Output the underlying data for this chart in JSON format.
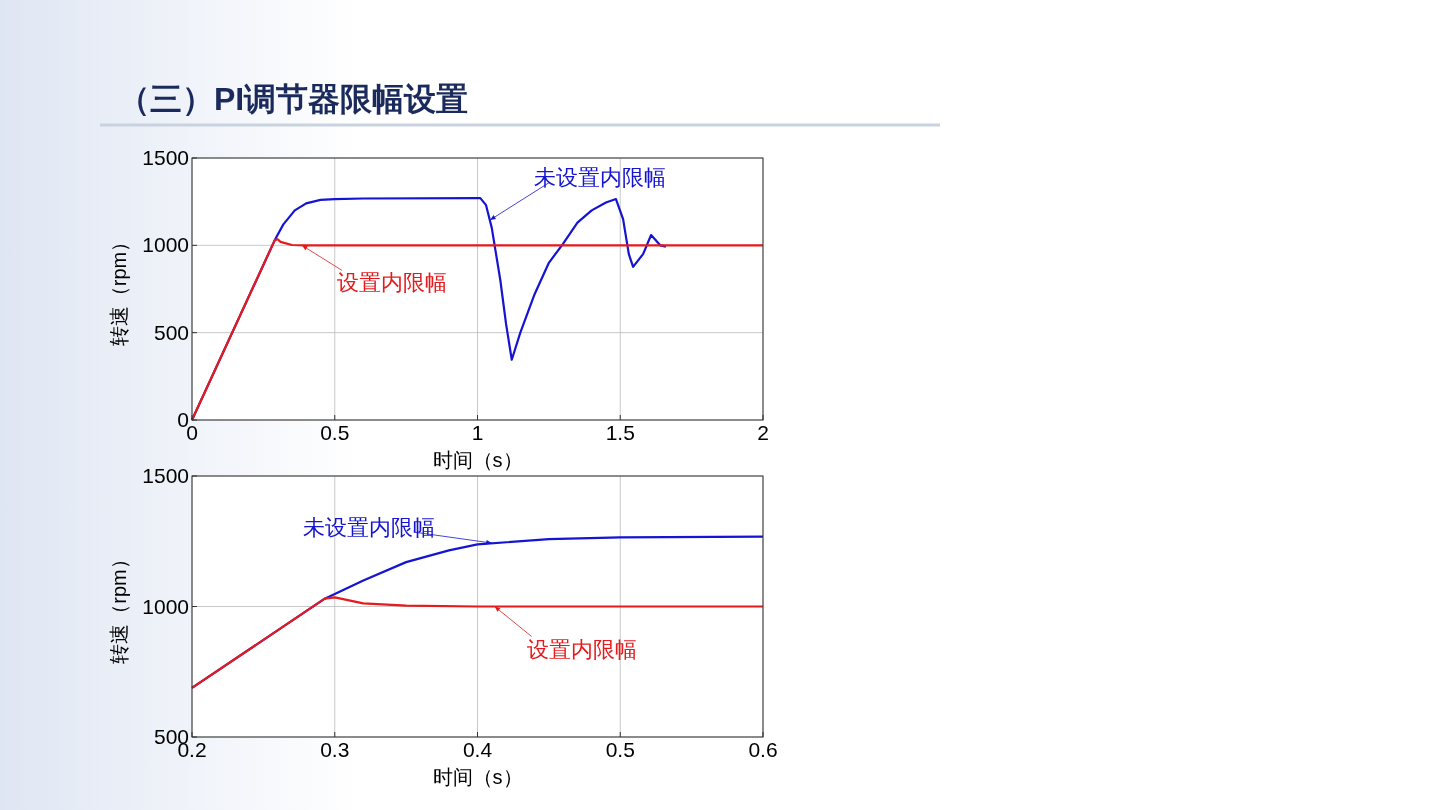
{
  "chart_data": [
    {
      "type": "line",
      "title": "（三）PI调节器限幅设置",
      "xlabel": "时间（s）",
      "ylabel": "转速（rpm）",
      "xlim": [
        0,
        2
      ],
      "ylim": [
        0,
        1500
      ],
      "xticks": [
        0,
        0.5,
        1,
        1.5,
        2
      ],
      "yticks": [
        0,
        500,
        1000,
        1500
      ],
      "grid": true,
      "series": [
        {
          "color": "#1414d2",
          "x": [
            0,
            0.29,
            0.32,
            0.36,
            0.4,
            0.45,
            0.5,
            0.6,
            1.0,
            1.01,
            1.03,
            1.05,
            1.08,
            1.1,
            1.12,
            1.15,
            1.2,
            1.25,
            1.3,
            1.35,
            1.4,
            1.45,
            1.485,
            1.51,
            1.53,
            1.545,
            1.58,
            1.608,
            1.64,
            1.66
          ],
          "values": [
            0,
            1030,
            1120,
            1200,
            1240,
            1260,
            1265,
            1268,
            1270,
            1270,
            1230,
            1100,
            800,
            550,
            345,
            500,
            720,
            900,
            1010,
            1130,
            1200,
            1245,
            1265,
            1150,
            950,
            877,
            950,
            1059,
            1000,
            993
          ]
        },
        {
          "color": "#e41a1c",
          "x": [
            0,
            0.29,
            0.3,
            0.31,
            0.35,
            0.4,
            2
          ],
          "values": [
            0,
            1030,
            1035,
            1020,
            1002,
            1000,
            1000
          ]
        }
      ],
      "annotations": [
        {
          "text": "未设置内限幅",
          "x": 1.044,
          "y": 1145
        },
        {
          "text": "设置内限幅",
          "x": 0.385,
          "y": 1000
        }
      ]
    },
    {
      "type": "line",
      "xlabel": "时间（s）",
      "ylabel": "转速（rpm）",
      "xlim": [
        0.2,
        0.6
      ],
      "ylim": [
        500,
        1500
      ],
      "xticks": [
        0.2,
        0.3,
        0.4,
        0.5,
        0.6
      ],
      "yticks": [
        500,
        1000,
        1500
      ],
      "grid": true,
      "series": [
        {
          "color": "#1414d2",
          "x": [
            0.2,
            0.293,
            0.32,
            0.35,
            0.38,
            0.4,
            0.45,
            0.5,
            0.6
          ],
          "values": [
            688,
            1030,
            1100,
            1170,
            1215,
            1238,
            1258,
            1265,
            1268
          ]
        },
        {
          "color": "#e41a1c",
          "x": [
            0.2,
            0.293,
            0.3,
            0.32,
            0.35,
            0.4,
            0.6
          ],
          "values": [
            688,
            1030,
            1035,
            1012,
            1003,
            1000,
            1000
          ]
        }
      ],
      "annotations": [
        {
          "text": "未设置内限幅",
          "x": 0.41,
          "y": 1243
        },
        {
          "text": "设置内限幅",
          "x": 0.412,
          "y": 1000
        }
      ]
    }
  ]
}
